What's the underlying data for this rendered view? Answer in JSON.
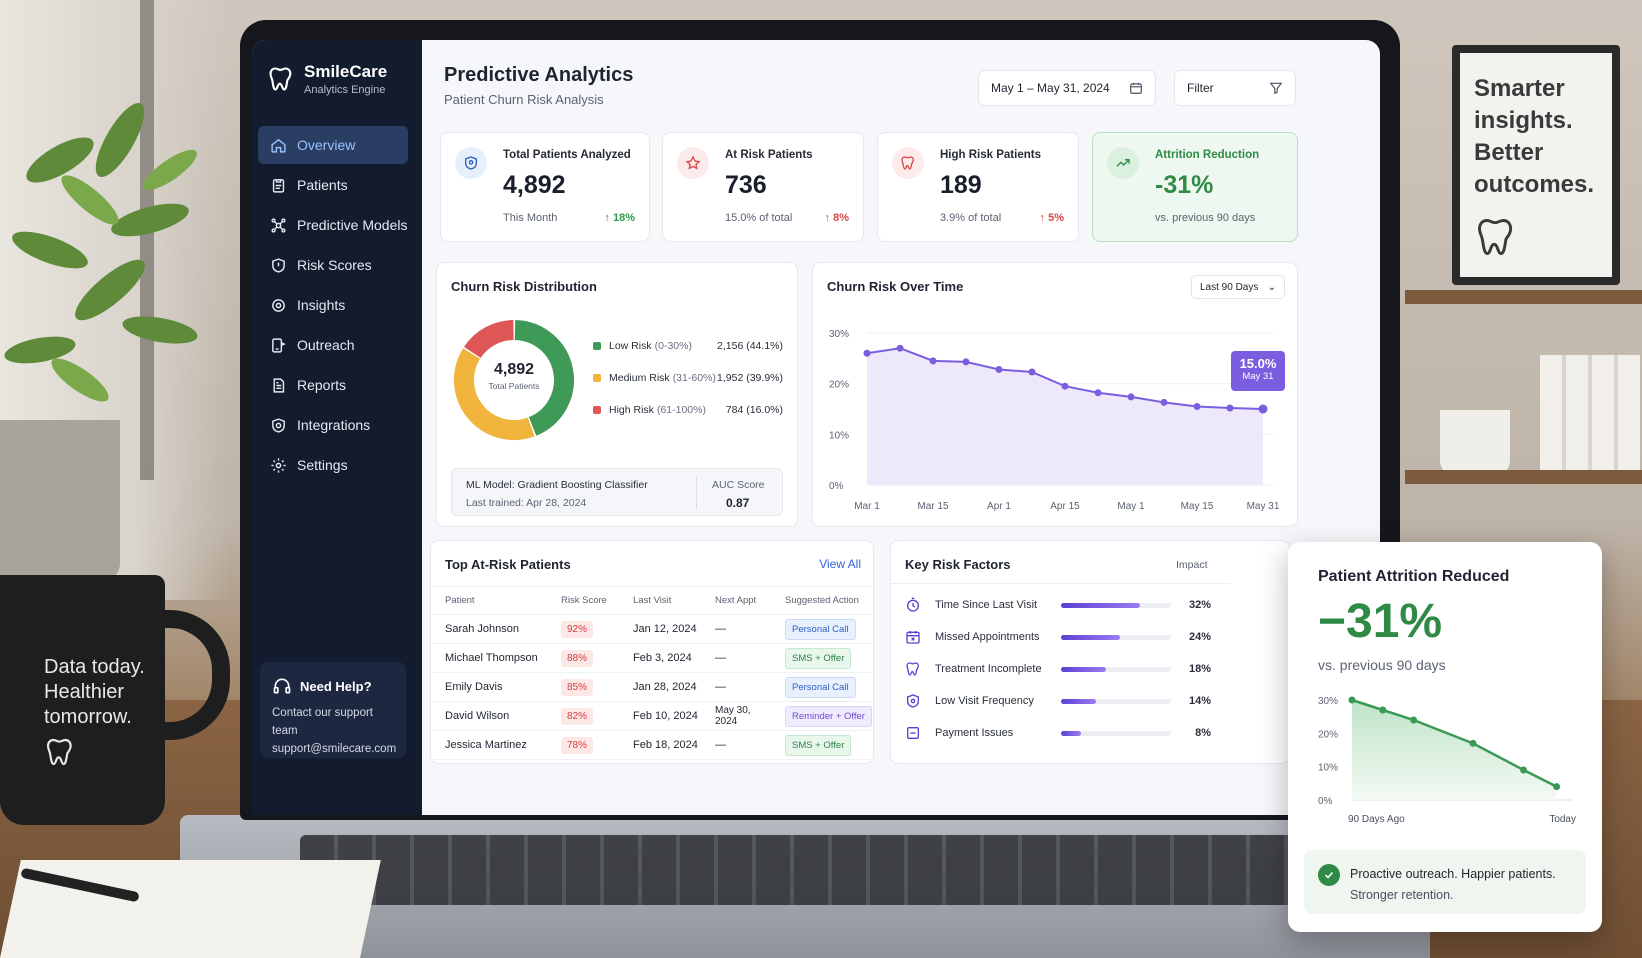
{
  "brand": {
    "name": "SmileCare",
    "subtitle": "Analytics Engine"
  },
  "sidebar": {
    "items": [
      {
        "label": "Overview",
        "icon": "home-icon",
        "active": true
      },
      {
        "label": "Patients",
        "icon": "clipboard-icon"
      },
      {
        "label": "Predictive Models",
        "icon": "network-icon"
      },
      {
        "label": "Risk Scores",
        "icon": "shield-icon"
      },
      {
        "label": "Insights",
        "icon": "lightbulb-icon"
      },
      {
        "label": "Outreach",
        "icon": "outreach-icon"
      },
      {
        "label": "Reports",
        "icon": "document-icon"
      },
      {
        "label": "Integrations",
        "icon": "integration-icon"
      },
      {
        "label": "Settings",
        "icon": "gear-icon"
      }
    ],
    "help": {
      "title": "Need Help?",
      "line1": "Contact our support team",
      "line2": "support@smilecare.com"
    }
  },
  "header": {
    "title": "Predictive Analytics",
    "subtitle": "Patient Churn Risk Analysis",
    "date_range": "May 1 – May 31, 2024",
    "filter_label": "Filter"
  },
  "kpis": [
    {
      "label": "Total Patients Analyzed",
      "value": "4,892",
      "foot": "This Month",
      "delta": "↑ 18%"
    },
    {
      "label": "At Risk Patients",
      "value": "736",
      "foot": "15.0% of total",
      "delta": "↑ 8%"
    },
    {
      "label": "High Risk Patients",
      "value": "189",
      "foot": "3.9% of total",
      "delta": "↑ 5%"
    },
    {
      "label": "Attrition Reduction",
      "value": "-31%",
      "foot": "vs. previous 90 days"
    }
  ],
  "distribution": {
    "title": "Churn Risk Distribution",
    "center_value": "4,892",
    "center_label": "Total Patients",
    "legend": [
      {
        "name": "Low Risk",
        "range": "(0-30%)",
        "value": "2,156 (44.1%)"
      },
      {
        "name": "Medium Risk",
        "range": "(31-60%)",
        "value": "1,952 (39.9%)"
      },
      {
        "name": "High Risk",
        "range": "(61-100%)",
        "value": "784 (16.0%)"
      }
    ],
    "model_line1": "ML Model: Gradient Boosting Classifier",
    "model_line2": "Last trained: Apr 28, 2024",
    "auc_label": "AUC Score",
    "auc_value": "0.87"
  },
  "over_time": {
    "title": "Churn Risk Over Time",
    "range_select": "Last 90 Days",
    "tooltip_value": "15.0%",
    "tooltip_date": "May 31"
  },
  "top_patients": {
    "title": "Top At-Risk Patients",
    "view_all": "View All",
    "columns": [
      "Patient",
      "Risk Score",
      "Last Visit",
      "Next Appt",
      "Suggested Action"
    ],
    "rows": [
      {
        "name": "Sarah Johnson",
        "score": "92%",
        "last": "Jan 12, 2024",
        "next": "—",
        "action": "Personal Call",
        "style": "blue"
      },
      {
        "name": "Michael Thompson",
        "score": "88%",
        "last": "Feb 3, 2024",
        "next": "—",
        "action": "SMS + Offer",
        "style": "green"
      },
      {
        "name": "Emily Davis",
        "score": "85%",
        "last": "Jan 28, 2024",
        "next": "—",
        "action": "Personal Call",
        "style": "blue"
      },
      {
        "name": "David Wilson",
        "score": "82%",
        "last": "Feb 10, 2024",
        "next": "May 30, 2024",
        "action": "Reminder + Offer",
        "style": "purple"
      },
      {
        "name": "Jessica Martinez",
        "score": "78%",
        "last": "Feb 18, 2024",
        "next": "—",
        "action": "SMS + Offer",
        "style": "green"
      }
    ]
  },
  "risk_factors": {
    "title": "Key Risk Factors",
    "impact_label": "Impact",
    "items": [
      {
        "label": "Time Since Last Visit",
        "value": "32%",
        "pct": 32,
        "icon": "clock-icon"
      },
      {
        "label": "Missed Appointments",
        "value": "24%",
        "pct": 24,
        "icon": "calendar-x-icon"
      },
      {
        "label": "Treatment Incomplete",
        "value": "18%",
        "pct": 18,
        "icon": "tooth-icon"
      },
      {
        "label": "Low Visit Frequency",
        "value": "14%",
        "pct": 14,
        "icon": "shield-icon"
      },
      {
        "label": "Payment Issues",
        "value": "8%",
        "pct": 8,
        "icon": "card-icon"
      }
    ]
  },
  "overlay": {
    "title": "Patient Attrition Reduced",
    "value": "−31%",
    "subtitle": "vs. previous 90 days",
    "footer_line1": "Proactive outreach. Happier patients.",
    "footer_line2": "Stronger retention."
  },
  "decor": {
    "poster_text": "Smarter\ninsights.\nBetter\noutcomes.",
    "mug_text": "Data today.\nHealthier\ntomorrow."
  },
  "chart_data": [
    {
      "type": "pie",
      "categories": [
        "Low Risk",
        "Medium Risk",
        "High Risk"
      ],
      "values": [
        44.1,
        39.9,
        16.0
      ],
      "colors": [
        "#3f9a58",
        "#f1b43c",
        "#de5656"
      ]
    },
    {
      "type": "area",
      "x": [
        "Mar 1",
        "",
        "Mar 15",
        "",
        "Apr 1",
        "",
        "Apr 15",
        "",
        "May 1",
        "",
        "May 15",
        "",
        "May 31"
      ],
      "x_tick_labels": [
        "Mar 1",
        "Mar 15",
        "Apr 1",
        "Apr 15",
        "May 1",
        "May 15",
        "May 31"
      ],
      "values": [
        26,
        27,
        24.5,
        24.3,
        22.8,
        22.3,
        19.5,
        18.2,
        17.4,
        16.3,
        15.5,
        15.2,
        15.0
      ],
      "ylim": [
        0,
        30
      ],
      "yticks": [
        "0%",
        "10%",
        "20%",
        "30%"
      ],
      "color": "#7b5ee0",
      "grid": true
    },
    {
      "type": "area",
      "x_tick_labels": [
        "90 Days Ago",
        "Today"
      ],
      "values": [
        30,
        27,
        24,
        17,
        9,
        4
      ],
      "ylim": [
        0,
        30
      ],
      "yticks": [
        "0%",
        "10%",
        "20%",
        "30%"
      ],
      "color": "#3a9a55"
    }
  ]
}
